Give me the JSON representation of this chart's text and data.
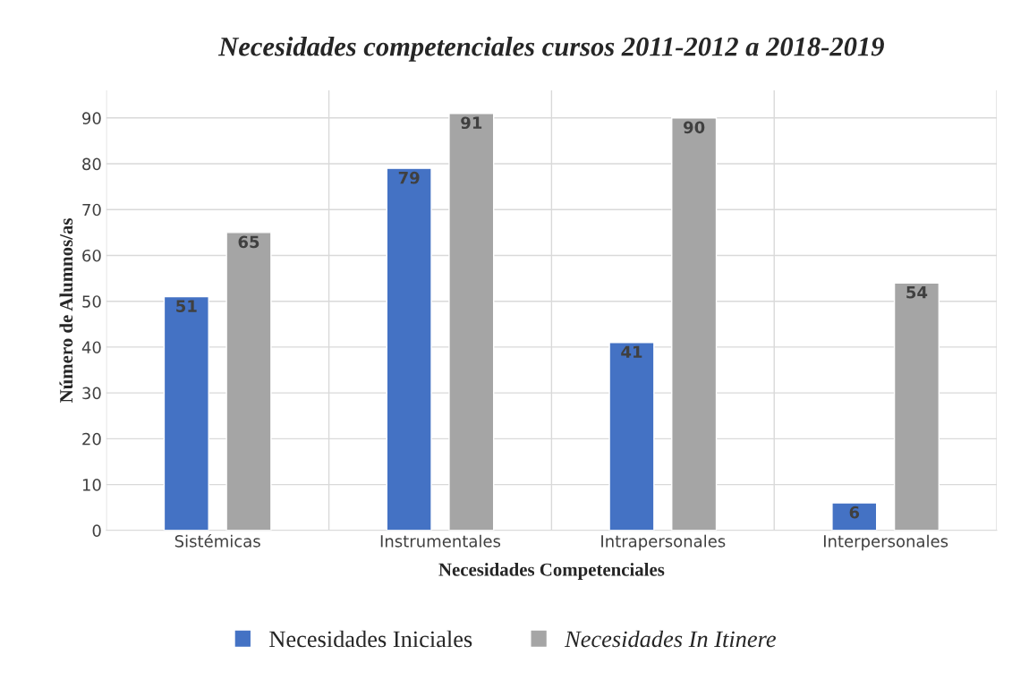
{
  "chart_data": {
    "type": "bar",
    "title": "Necesidades competenciales cursos 2011-2012 a 2018-2019",
    "xlabel": "Necesidades Competenciales",
    "ylabel": "Número de Alumnos/as",
    "categories": [
      "Sistémicas",
      "Instrumentales",
      "Intrapersonales",
      "Interpersonales"
    ],
    "series": [
      {
        "name": "Necesidades Iniciales",
        "color": "#4472c4",
        "values": [
          51,
          79,
          41,
          6
        ]
      },
      {
        "name": "Necesidades In Itinere",
        "color": "#a5a5a5",
        "values": [
          65,
          91,
          90,
          54
        ]
      }
    ],
    "ylim": [
      0,
      96
    ],
    "yticks": [
      0,
      10,
      20,
      30,
      40,
      50,
      60,
      70,
      80,
      90
    ],
    "grid": true,
    "legend": "bottom",
    "data_labels": true
  }
}
